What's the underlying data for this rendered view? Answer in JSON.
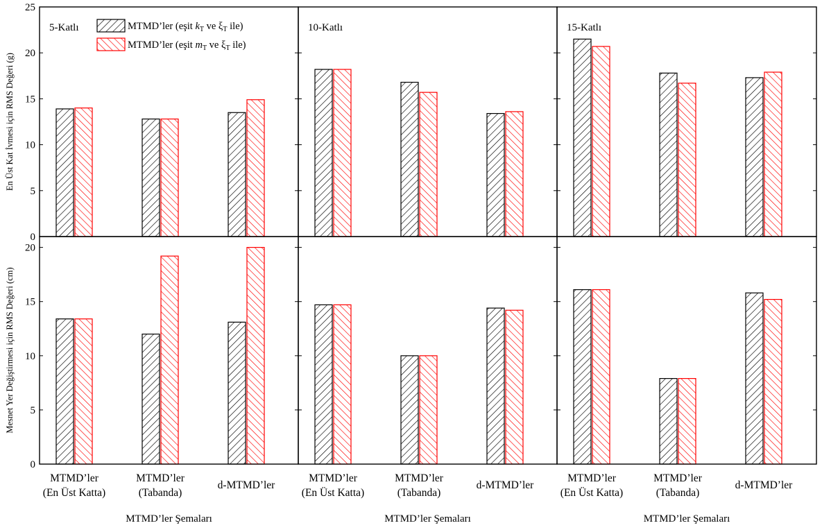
{
  "colors": {
    "series1": "#000000",
    "series2": "#ff0000",
    "axes": "#000000",
    "background": "#ffffff"
  },
  "chart_data": {
    "type": "bar",
    "layout": "3 columns x 2 rows of grouped bar panels",
    "grid": false,
    "legend_position": "top-left of first panel",
    "legend": [
      {
        "series": 0,
        "parts": [
          {
            "t": "MTMD’ler (eşit "
          },
          {
            "t": "k",
            "i": true
          },
          {
            "t": "T",
            "s": true
          },
          {
            "t": " ve ξ"
          },
          {
            "t": "T",
            "s": true
          },
          {
            "t": " ile)"
          }
        ]
      },
      {
        "series": 1,
        "parts": [
          {
            "t": "MTMD’ler (eşit "
          },
          {
            "t": "m",
            "i": true
          },
          {
            "t": "T",
            "s": true
          },
          {
            "t": " ve ξ"
          },
          {
            "t": "T",
            "s": true
          },
          {
            "t": " ile)"
          }
        ]
      }
    ],
    "categories": [
      [
        "MTMD’ler",
        "(En Üst Katta)"
      ],
      [
        "MTMD’ler",
        "(Tabanda)"
      ],
      [
        "d-MTMD’ler"
      ]
    ],
    "xlabel": "MTMD’ler Şemaları",
    "columns": [
      "5-Katlı",
      "10-Katlı",
      "15-Katlı"
    ],
    "rows": [
      {
        "ylabel": "En Üst Kat İvmesi için RMS Değeri (g)",
        "ylim": [
          0,
          25
        ],
        "yticks": [
          0,
          5,
          10,
          15,
          20,
          25
        ],
        "panels": [
          [
            [
              13.9,
              14.0
            ],
            [
              12.8,
              12.8
            ],
            [
              13.5,
              14.9
            ]
          ],
          [
            [
              18.2,
              18.2
            ],
            [
              16.8,
              15.7
            ],
            [
              13.4,
              13.6
            ]
          ],
          [
            [
              21.5,
              20.7
            ],
            [
              17.8,
              16.7
            ],
            [
              17.3,
              17.9
            ]
          ]
        ]
      },
      {
        "ylabel": "Mesnet Yer Değiştirmesi için RMS Değeri (cm)",
        "ylim": [
          0,
          21
        ],
        "yticks": [
          0,
          5,
          10,
          15,
          20
        ],
        "panels": [
          [
            [
              13.4,
              13.4
            ],
            [
              12.0,
              19.2
            ],
            [
              13.1,
              20.0
            ]
          ],
          [
            [
              14.7,
              14.7
            ],
            [
              10.0,
              10.0
            ],
            [
              14.4,
              14.2
            ]
          ],
          [
            [
              16.1,
              16.1
            ],
            [
              7.9,
              7.9
            ],
            [
              15.8,
              15.2
            ]
          ]
        ]
      }
    ]
  }
}
